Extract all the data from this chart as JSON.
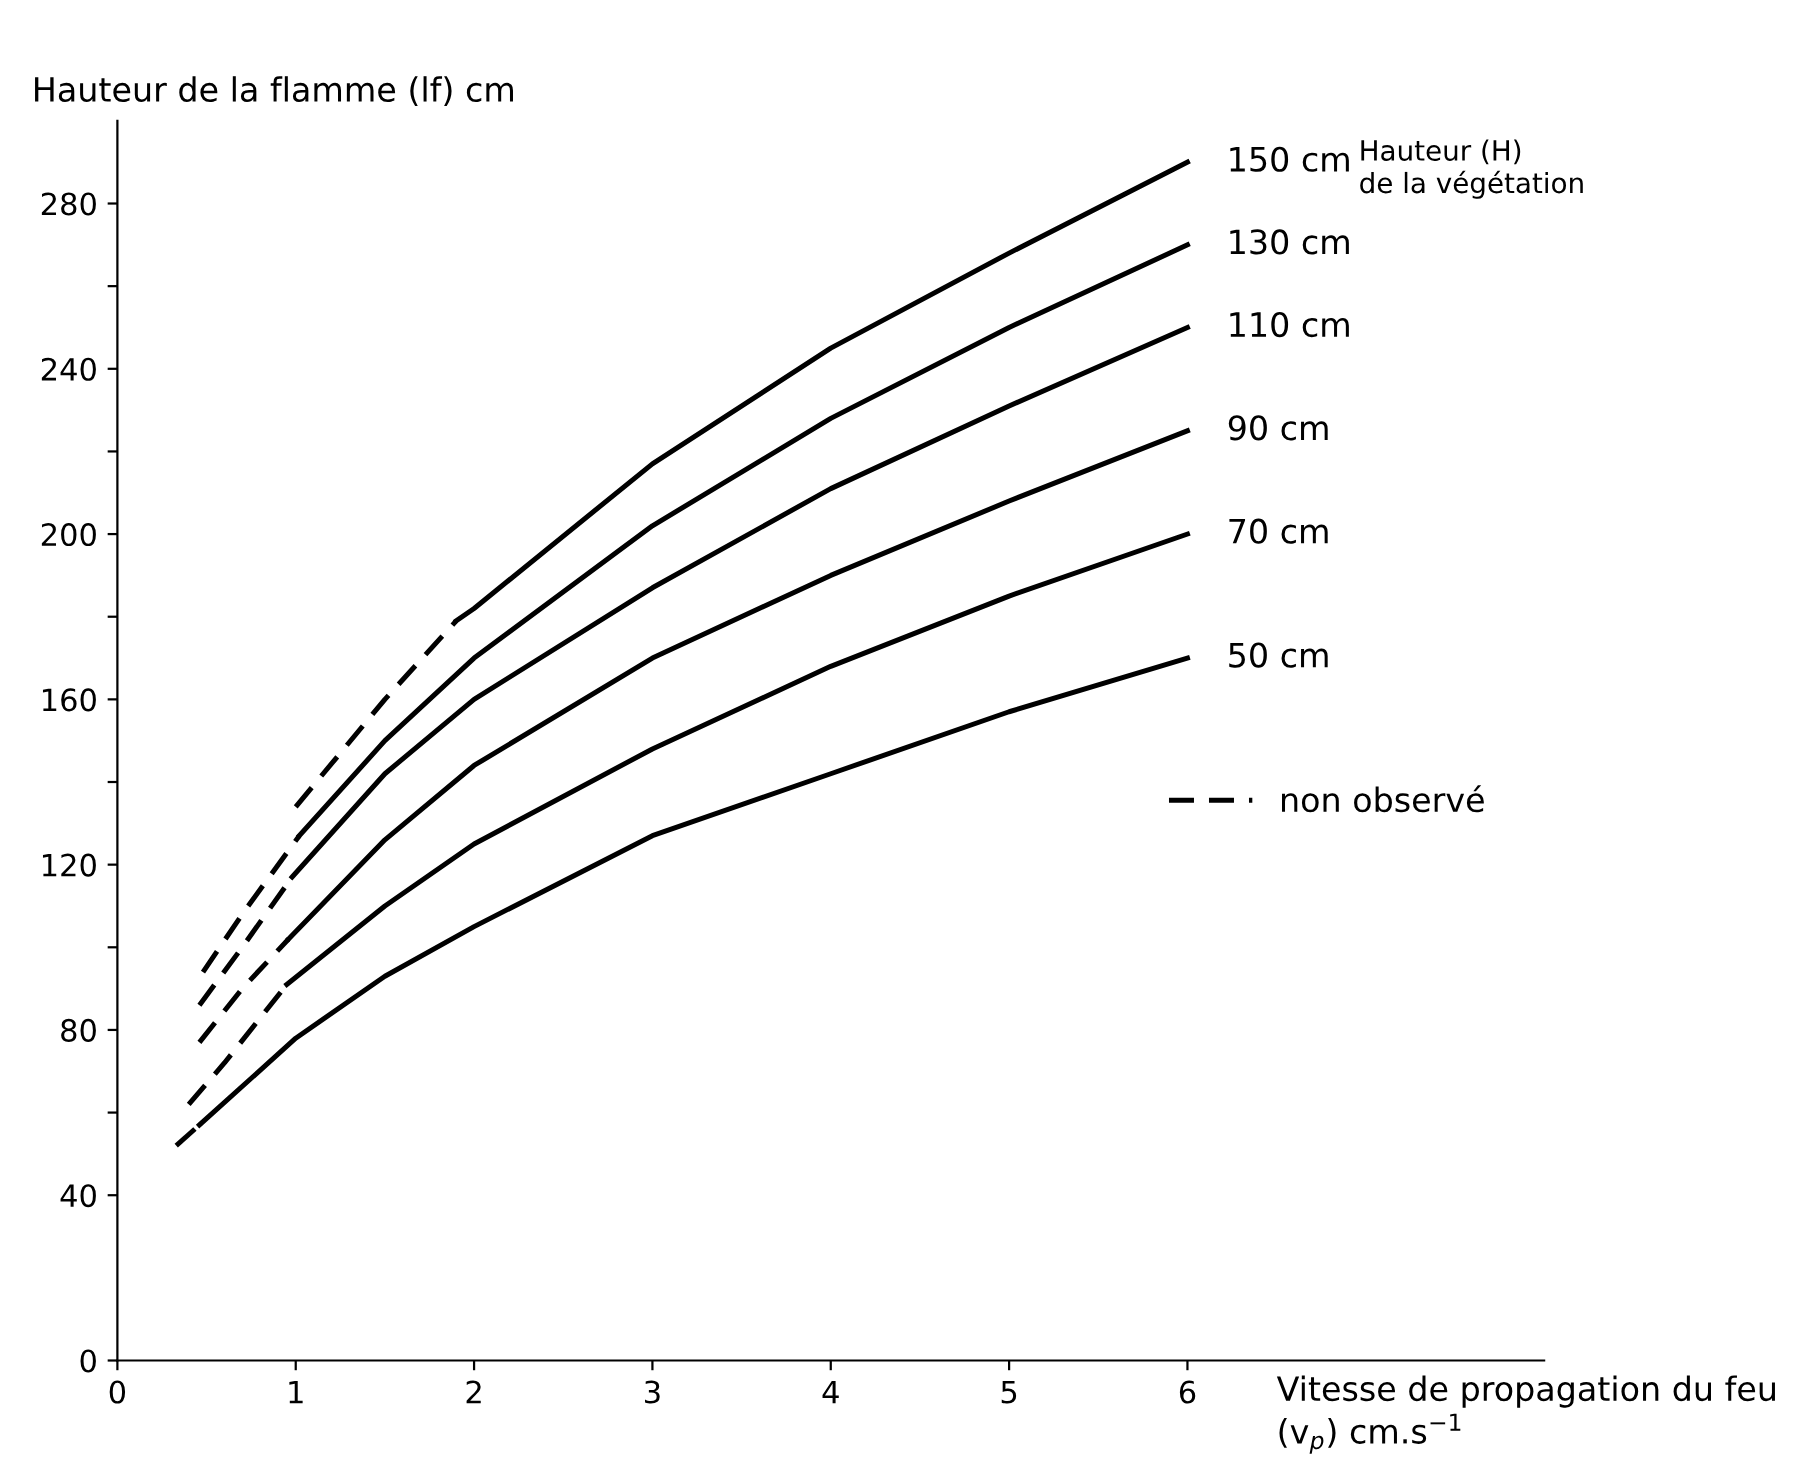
{
  "chart_data": {
    "type": "line",
    "xlabel": "Vitesse de propagation du feu\n(v$_{p}$) cm.s$^{−1}$",
    "ylabel": "Hauteur de la flamme (lf) cm",
    "annotations": [
      "Hauteur (H)\nde la végétation"
    ],
    "xlim": [
      0,
      8
    ],
    "xticks": [
      0,
      1,
      2,
      3,
      4,
      5,
      6
    ],
    "ylim": [
      0,
      300
    ],
    "yticks": [
      0,
      40,
      {
        "value": 60,
        "label": null
      },
      80,
      {
        "value": 100,
        "label": null
      },
      120,
      {
        "value": 140,
        "label": null
      },
      160,
      {
        "value": 180,
        "label": null
      },
      200,
      {
        "value": 220,
        "label": null
      },
      240,
      {
        "value": 260,
        "label": null
      },
      280
    ],
    "grid": false,
    "legend": "right",
    "marker": "none",
    "series": [
      {
        "name": "150 cm",
        "color": "#000000",
        "line_style": "solid",
        "x": [
          1.9,
          2,
          3,
          4,
          5,
          6
        ],
        "values": [
          179,
          182,
          217,
          245,
          268,
          290
        ]
      },
      {
        "name": "130 cm",
        "color": "#000000",
        "line_style": "solid",
        "x": [
          1.02,
          1.5,
          2,
          3,
          4,
          5,
          6
        ],
        "values": [
          127,
          150,
          170,
          202,
          228,
          250,
          270
        ]
      },
      {
        "name": "110 cm",
        "color": "#000000",
        "line_style": "solid",
        "x": [
          0.98,
          1.5,
          2,
          3,
          4,
          5,
          6
        ],
        "values": [
          117,
          142,
          160,
          187,
          211,
          231,
          250
        ]
      },
      {
        "name": "90 cm",
        "color": "#000000",
        "line_style": "solid",
        "x": [
          0.96,
          1.5,
          2,
          3,
          4,
          5,
          6
        ],
        "values": [
          102,
          126,
          144,
          170,
          190,
          208,
          225
        ]
      },
      {
        "name": "70 cm",
        "color": "#000000",
        "line_style": "solid",
        "x": [
          0.95,
          1.5,
          2,
          3,
          4,
          5,
          6
        ],
        "values": [
          91,
          110,
          125,
          148,
          168,
          185,
          200
        ]
      },
      {
        "name": "50 cm",
        "color": "#000000",
        "line_style": "solid",
        "x": [
          0.46,
          1,
          1.5,
          2,
          3,
          4,
          5,
          6
        ],
        "values": [
          57,
          78,
          93,
          105,
          127,
          142,
          157,
          170
        ]
      },
      {
        "name": "non observé",
        "color": "#000000",
        "line_style": "dashed",
        "x": [
          1,
          1.5,
          1.9
        ],
        "values": [
          134,
          160,
          179
        ]
      },
      {
        "color": "#000000",
        "line_style": "dashed",
        "x": [
          0.48,
          0.7,
          1.02
        ],
        "values": [
          94,
          108,
          127
        ]
      },
      {
        "color": "#000000",
        "line_style": "dashed",
        "x": [
          0.46,
          0.7,
          0.98
        ],
        "values": [
          86,
          100,
          117
        ]
      },
      {
        "color": "#000000",
        "line_style": "dashed",
        "x": [
          0.46,
          0.7,
          0.96
        ],
        "values": [
          77,
          90,
          102
        ]
      },
      {
        "color": "#000000",
        "line_style": "dashed",
        "x": [
          0.4,
          0.6,
          0.95
        ],
        "values": [
          62,
          72,
          91
        ]
      },
      {
        "color": "#000000",
        "line_style": "dashed",
        "x": [
          0.33,
          0.46
        ],
        "values": [
          52,
          57
        ]
      }
    ]
  }
}
